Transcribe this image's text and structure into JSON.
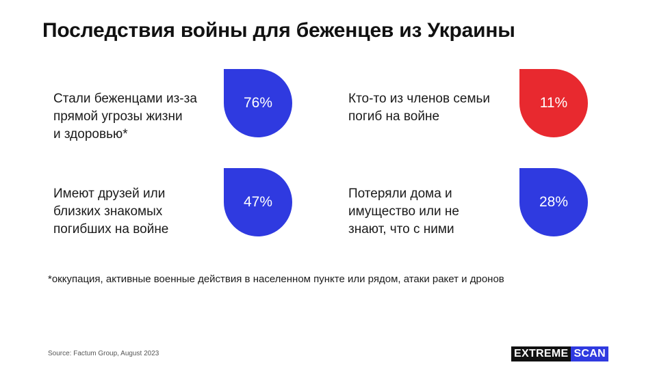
{
  "title": "Последствия войны для беженцев из Украины",
  "colors": {
    "blue": "#2f3ae0",
    "red": "#e8292f"
  },
  "stats": [
    {
      "text": "Стали беженцами из-за\nпрямой угрозы жизни\nи здоровью*",
      "value": "76%",
      "color": "#2f3ae0"
    },
    {
      "text": "Кто-то из членов семьи\nпогиб на войне",
      "value": "11%",
      "color": "#e8292f"
    },
    {
      "text": "Имеют друзей или\nблизких знакомых\nпогибших на войне",
      "value": "47%",
      "color": "#2f3ae0"
    },
    {
      "text": "Потеряли дома и\nимущество или не\nзнают, что с ними",
      "value": "28%",
      "color": "#2f3ae0"
    }
  ],
  "footnote": "*оккупация, активные военные действия в населенном пункте или рядом, атаки ракет и дронов",
  "source": "Source: Factum Group, August 2023",
  "logo": {
    "part1": "EXTREME",
    "part2": "SCAN"
  }
}
